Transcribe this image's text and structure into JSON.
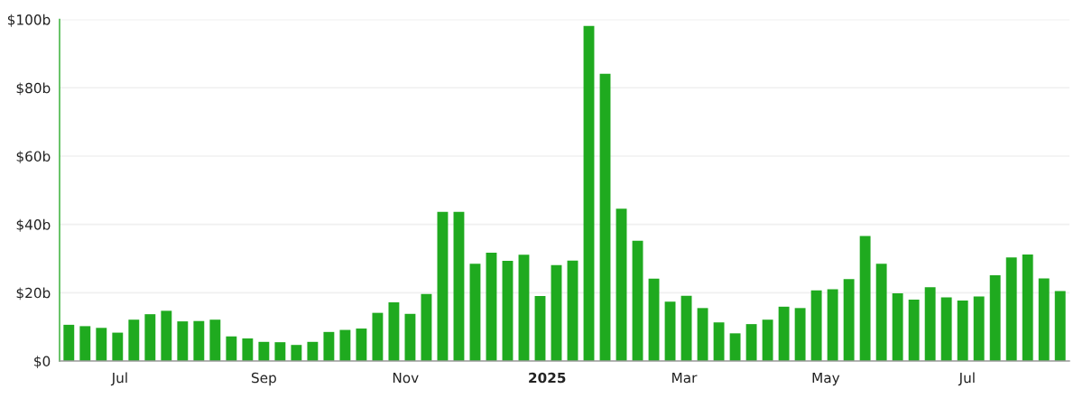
{
  "chart_data": {
    "type": "bar",
    "x": [
      "2024-06-09",
      "2024-06-16",
      "2024-06-23",
      "2024-06-30",
      "2024-07-07",
      "2024-07-14",
      "2024-07-21",
      "2024-07-28",
      "2024-08-04",
      "2024-08-11",
      "2024-08-18",
      "2024-08-25",
      "2024-09-01",
      "2024-09-08",
      "2024-09-15",
      "2024-09-22",
      "2024-09-29",
      "2024-10-06",
      "2024-10-13",
      "2024-10-20",
      "2024-10-27",
      "2024-11-03",
      "2024-11-10",
      "2024-11-17",
      "2024-11-24",
      "2024-12-01",
      "2024-12-08",
      "2024-12-15",
      "2024-12-22",
      "2024-12-29",
      "2025-01-05",
      "2025-01-12",
      "2025-01-19",
      "2025-01-26",
      "2025-02-02",
      "2025-02-09",
      "2025-02-16",
      "2025-02-23",
      "2025-03-02",
      "2025-03-09",
      "2025-03-16",
      "2025-03-23",
      "2025-03-30",
      "2025-04-06",
      "2025-04-13",
      "2025-04-20",
      "2025-04-27",
      "2025-05-04",
      "2025-05-11",
      "2025-05-18",
      "2025-05-25",
      "2025-06-01",
      "2025-06-08",
      "2025-06-15",
      "2025-06-22",
      "2025-06-29",
      "2025-07-06",
      "2025-07-13",
      "2025-07-20",
      "2025-07-27",
      "2025-08-03",
      "2025-08-10"
    ],
    "values": [
      10.6,
      10.2,
      9.7,
      8.3,
      12.1,
      13.7,
      14.7,
      11.6,
      11.7,
      12.1,
      7.2,
      6.6,
      5.6,
      5.5,
      4.7,
      5.6,
      8.5,
      9.1,
      9.5,
      14.1,
      17.2,
      13.8,
      19.6,
      43.7,
      43.7,
      28.5,
      31.7,
      29.3,
      31.1,
      19.0,
      28.1,
      29.4,
      98.1,
      84.1,
      44.6,
      35.2,
      24.1,
      17.4,
      19.1,
      15.5,
      11.3,
      8.1,
      10.8,
      12.1,
      15.9,
      15.5,
      20.7,
      21.0,
      24.0,
      36.6,
      28.5,
      19.8,
      18.0,
      21.6,
      18.6,
      17.7,
      18.9,
      25.1,
      30.3,
      31.2,
      24.2,
      20.5
    ],
    "color": "#1faa1f",
    "xlim": [
      "2024-06-05",
      "2025-08-14"
    ],
    "xticks": [
      {
        "value": "2024-07-01",
        "label": "Jul"
      },
      {
        "value": "2024-09-01",
        "label": "Sep"
      },
      {
        "value": "2024-11-01",
        "label": "Nov"
      },
      {
        "value": "2025-01-01",
        "label": "2025"
      },
      {
        "value": "2025-03-01",
        "label": "Mar"
      },
      {
        "value": "2025-05-01",
        "label": "May"
      },
      {
        "value": "2025-07-01",
        "label": "Jul"
      }
    ],
    "ylim": [
      0,
      100
    ],
    "yticks": [
      {
        "value": 0,
        "label": "$0"
      },
      {
        "value": 20,
        "label": "$20b"
      },
      {
        "value": 40,
        "label": "$40b"
      },
      {
        "value": 60,
        "label": "$60b"
      },
      {
        "value": 80,
        "label": "$80b"
      },
      {
        "value": 100,
        "label": "$100b"
      }
    ],
    "grid": "y"
  }
}
